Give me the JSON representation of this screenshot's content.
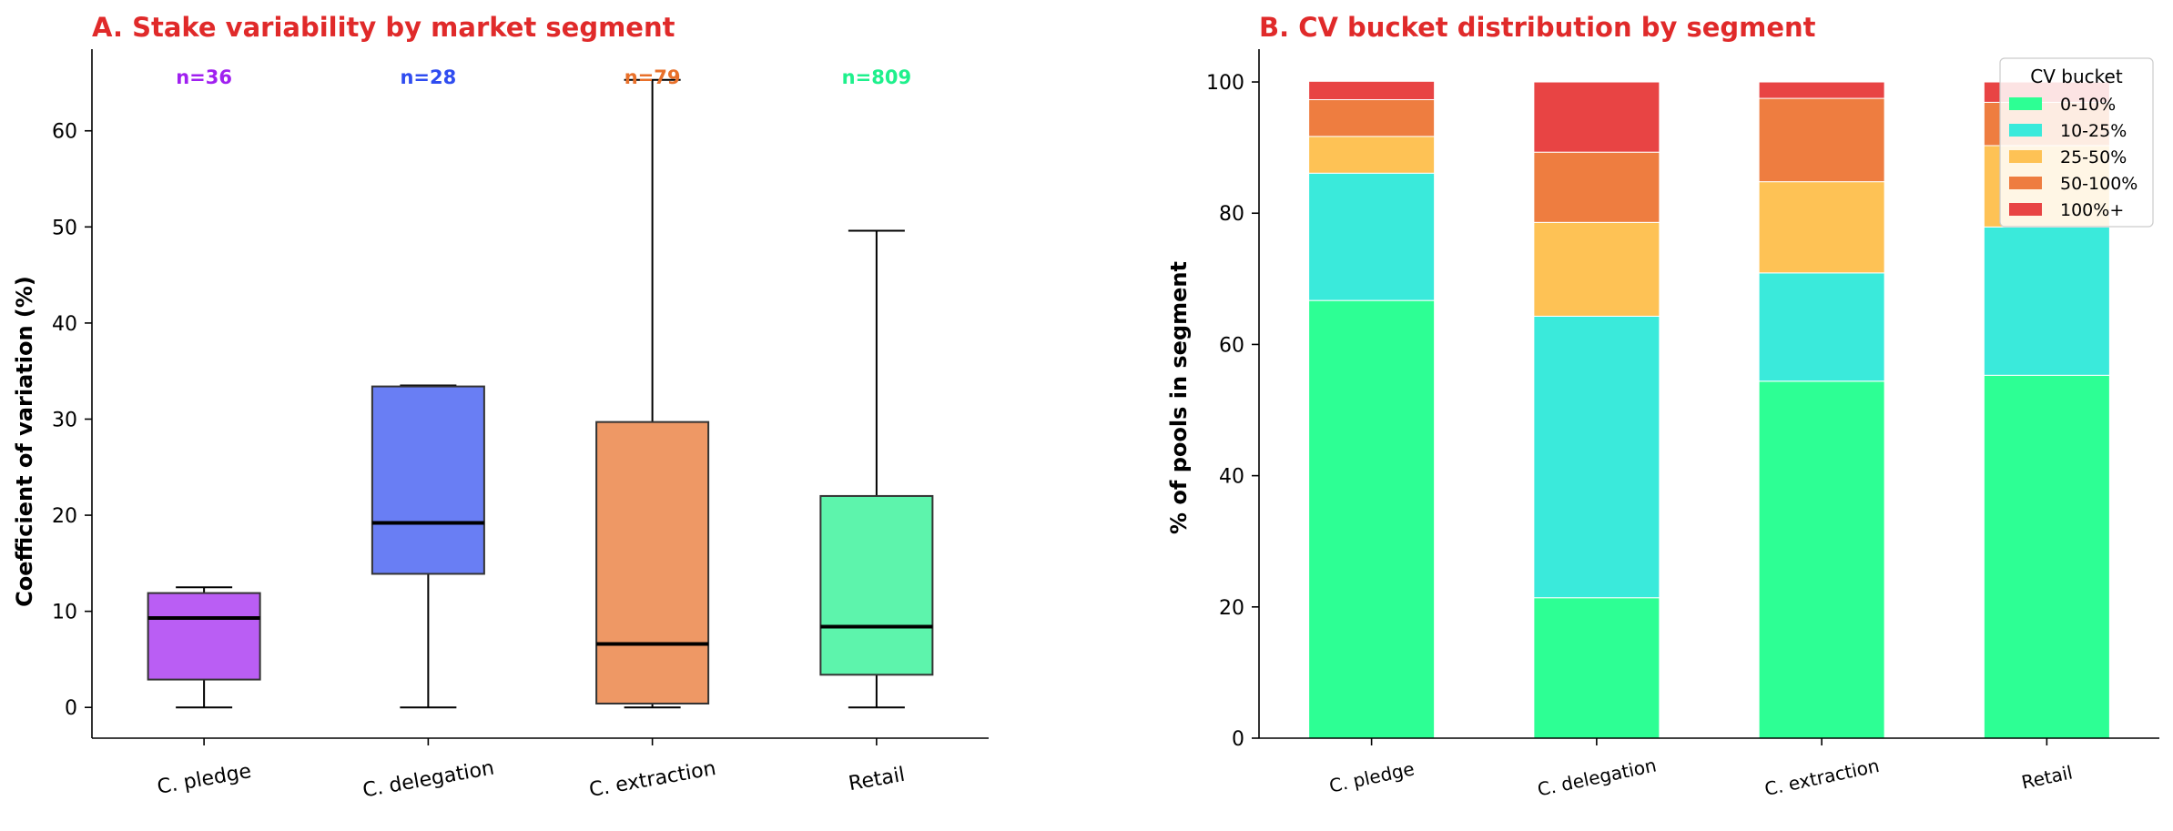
{
  "colors": {
    "title": "#e02a2a",
    "c_pledge": "#a020f0",
    "c_delegation": "#2f4cf0",
    "c_extraction": "#e8702a",
    "retail": "#1ef08c",
    "bucket_0_10": "#2dff94",
    "bucket_10_25": "#3aeadb",
    "bucket_25_50": "#fec255",
    "bucket_50_100": "#ee7d40",
    "bucket_100_plus": "#e84444"
  },
  "chart_data": [
    {
      "type": "box",
      "title": "A. Stake variability by market segment",
      "xlabel": "",
      "ylabel": "Coefficient of variation (%)",
      "ylim": [
        -3.2,
        68.5
      ],
      "yticks": [
        "0",
        "10",
        "20",
        "30",
        "40",
        "50",
        "60"
      ],
      "categories": [
        "C. pledge",
        "C. delegation",
        "C. extraction",
        "Retail"
      ],
      "n_labels": [
        "n=36",
        "n=28",
        "n=79",
        "n=809"
      ],
      "boxes": [
        {
          "whisker_low": 0.0,
          "q1": 2.9,
          "median": 9.3,
          "q3": 11.9,
          "whisker_high": 12.5
        },
        {
          "whisker_low": 0.0,
          "q1": 13.9,
          "median": 19.2,
          "q3": 33.4,
          "whisker_high": 33.5
        },
        {
          "whisker_low": 0.0,
          "q1": 0.4,
          "median": 6.6,
          "q3": 29.7,
          "whisker_high": 65.3
        },
        {
          "whisker_low": 0.0,
          "q1": 3.4,
          "median": 8.4,
          "q3": 22.0,
          "whisker_high": 49.6
        }
      ],
      "grid": false
    },
    {
      "type": "stacked-bar",
      "title": "B. CV bucket distribution by segment",
      "xlabel": "",
      "ylabel": "% of pools in segment",
      "ylim": [
        0,
        105
      ],
      "yticks": [
        "0",
        "20",
        "40",
        "60",
        "80",
        "100"
      ],
      "categories": [
        "C. pledge",
        "C. delegation",
        "C. extraction",
        "Retail"
      ],
      "legend_title": "CV bucket",
      "legend_position": "top-right",
      "series": [
        {
          "name": "0-10%",
          "values": [
            66.7,
            21.4,
            54.4,
            55.3
          ]
        },
        {
          "name": "10-25%",
          "values": [
            19.4,
            42.9,
            16.5,
            22.6
          ]
        },
        {
          "name": "25-50%",
          "values": [
            5.6,
            14.3,
            13.9,
            12.4
          ]
        },
        {
          "name": "50-100%",
          "values": [
            5.6,
            10.7,
            12.7,
            6.6
          ]
        },
        {
          "name": "100%+",
          "values": [
            2.8,
            10.7,
            2.5,
            3.1
          ]
        }
      ],
      "grid": false
    }
  ]
}
